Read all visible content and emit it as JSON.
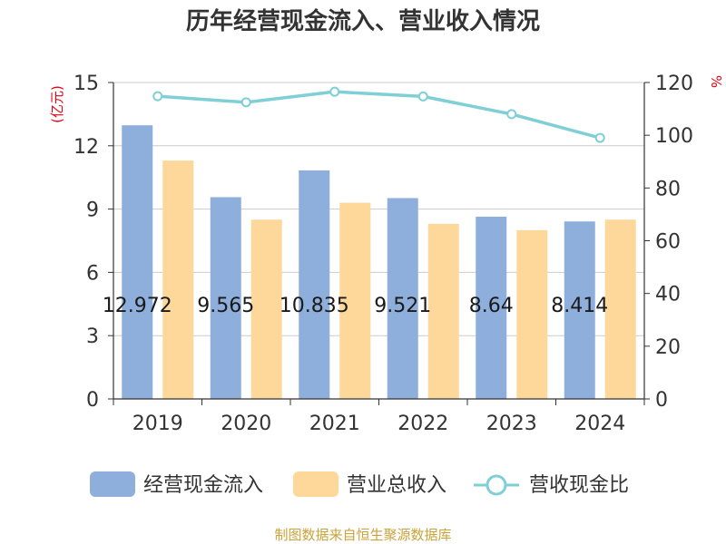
{
  "chart_data": {
    "type": "bar",
    "title": "历年经营现金流入、营业收入情况",
    "categories": [
      "2019",
      "2020",
      "2021",
      "2022",
      "2023",
      "2024"
    ],
    "series": [
      {
        "name": "经营现金流入",
        "type": "bar",
        "axis": "left",
        "color": "#8eaedb",
        "values": [
          12.972,
          9.565,
          10.835,
          9.521,
          8.64,
          8.414
        ],
        "labels": [
          "12.972",
          "9.565",
          "10.835",
          "9.521",
          "8.64",
          "8.414"
        ]
      },
      {
        "name": "营业总收入",
        "type": "bar",
        "axis": "left",
        "color": "#fed89a",
        "values": [
          11.3,
          8.5,
          9.3,
          8.3,
          8.0,
          8.5
        ]
      },
      {
        "name": "营收现金比",
        "type": "line",
        "axis": "right",
        "color": "#7fcfd6",
        "values": [
          114.8,
          112.5,
          116.5,
          114.7,
          108.0,
          99.0
        ]
      }
    ],
    "yleft": {
      "unit": "(亿元)",
      "ylim": [
        0,
        15
      ],
      "ticks": [
        "0",
        "3",
        "6",
        "9",
        "12",
        "15"
      ]
    },
    "yright": {
      "unit": "%",
      "ylim": [
        0,
        120
      ],
      "ticks": [
        "0",
        "20",
        "40",
        "60",
        "80",
        "100",
        "120"
      ]
    },
    "grid": true,
    "legend_position": "bottom"
  },
  "source": "制图数据来自恒生聚源数据库"
}
